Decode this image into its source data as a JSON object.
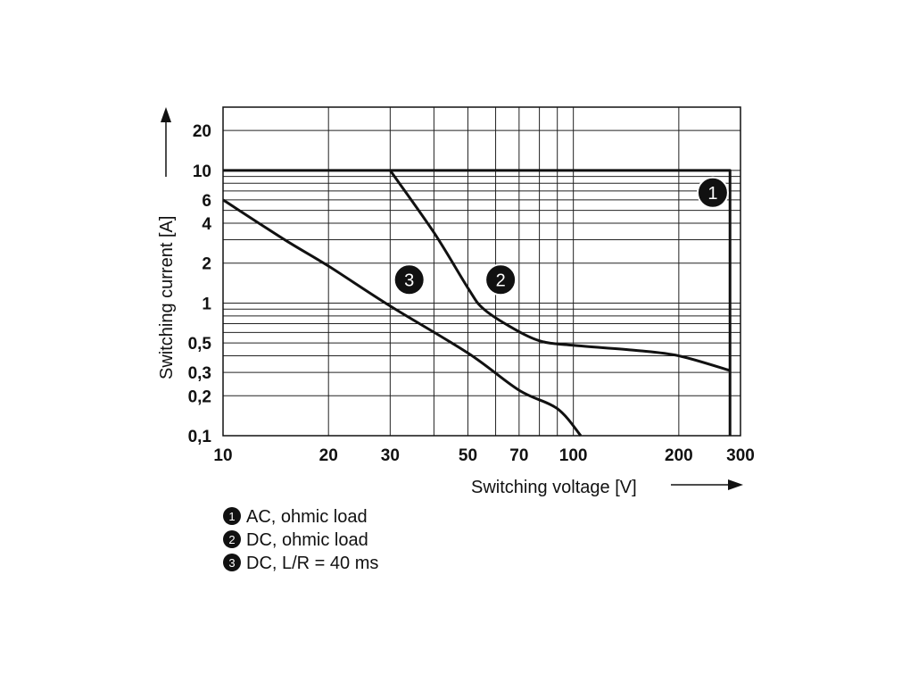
{
  "chart_data": {
    "type": "line",
    "title": "",
    "xlabel": "Switching voltage [V]",
    "ylabel": "Switching current [A]",
    "x_scale": "log",
    "y_scale": "log",
    "xlim": [
      10,
      300
    ],
    "ylim": [
      0.1,
      30
    ],
    "grid": true,
    "x_ticks": [
      10,
      20,
      30,
      50,
      70,
      100,
      200,
      300
    ],
    "x_tick_labels": [
      "10",
      "20",
      "30",
      "50",
      "70",
      "100",
      "200",
      "300"
    ],
    "y_ticks": [
      0.1,
      0.2,
      0.3,
      0.5,
      1,
      2,
      4,
      6,
      10,
      20
    ],
    "y_tick_labels": [
      "0,1",
      "0,2",
      "0,3",
      "0,5",
      "1",
      "2",
      "4",
      "6",
      "10",
      "20"
    ],
    "series": [
      {
        "marker": "1",
        "x": [
          10,
          280,
          280
        ],
        "y": [
          10,
          10,
          0.1
        ]
      },
      {
        "marker": "2",
        "x": [
          30,
          40,
          50,
          55,
          65,
          80,
          100,
          150,
          200,
          280
        ],
        "y": [
          10,
          3.4,
          1.3,
          0.92,
          0.68,
          0.52,
          0.48,
          0.44,
          0.4,
          0.31
        ]
      },
      {
        "marker": "3",
        "x": [
          10,
          15,
          20,
          30,
          50,
          70,
          90,
          105
        ],
        "y": [
          6,
          3,
          1.9,
          0.95,
          0.42,
          0.22,
          0.16,
          0.1
        ]
      }
    ],
    "markers": [
      {
        "label": "1",
        "x": 250,
        "y": 6.8
      },
      {
        "label": "2",
        "x": 62,
        "y": 1.5
      },
      {
        "label": "3",
        "x": 34,
        "y": 1.5
      }
    ],
    "legend": [
      {
        "marker": "1",
        "text": "AC, ohmic load"
      },
      {
        "marker": "2",
        "text": "DC, ohmic load"
      },
      {
        "marker": "3",
        "text": "DC, L/R = 40 ms"
      }
    ]
  }
}
